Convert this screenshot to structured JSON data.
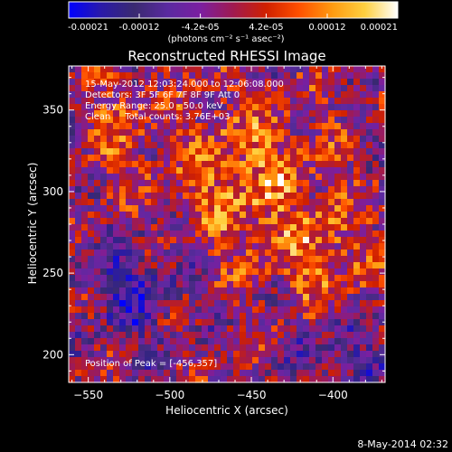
{
  "colorbar": {
    "ticks": [
      "-0.00021",
      "-0.00012",
      "-4.2e-05",
      "4.2e-05",
      "0.00012",
      "0.00021"
    ],
    "units_label": "(photons cm⁻² s⁻¹ asec⁻²)",
    "colormap": [
      "#0000ff",
      "#2a1aa8",
      "#3a2a70",
      "#5a2aa0",
      "#7b1fa0",
      "#a01a50",
      "#d02000",
      "#ff5000",
      "#ff9a10",
      "#ffd040",
      "#ffffff"
    ],
    "vmin": -0.00021,
    "vmax": 0.00021
  },
  "chart_data": {
    "type": "heatmap",
    "title": "Reconstructed RHESSI Image",
    "xlabel": "Heliocentric X (arcsec)",
    "ylabel": "Heliocentric Y (arcsec)",
    "xlim": [
      -562,
      -368
    ],
    "ylim": [
      183,
      377
    ],
    "xticks": [
      -550,
      -500,
      -450,
      -400
    ],
    "yticks": [
      200,
      250,
      300,
      350
    ],
    "annotations": [
      "15-May-2012 12:03:24.000 to 12:06:08.000",
      "Detectors: 3F 5F 6F 7F 8F 9F Att 0",
      "Energy Range: 25.0 - 50.0 keV",
      "Clean     Total counts: 3.76E+03"
    ],
    "peak_label": "Position of Peak = [-456,357]",
    "peak": [
      -456,
      357
    ]
  },
  "footer": {
    "timestamp": "8-May-2014 02:32"
  }
}
